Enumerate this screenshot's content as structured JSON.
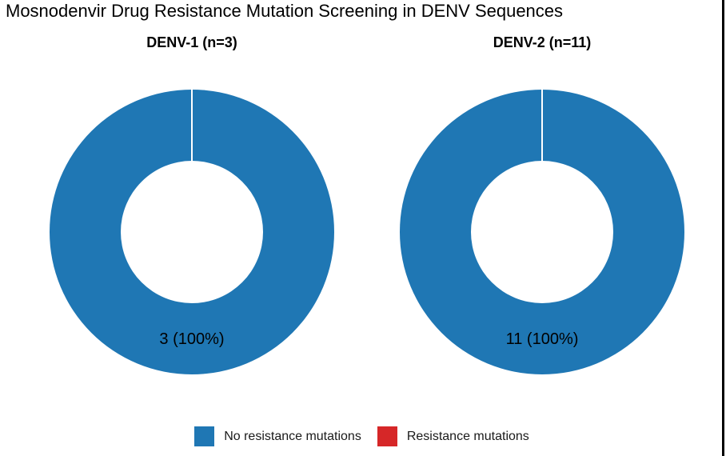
{
  "title": "Mosnodenvir Drug Resistance Mutation Screening in DENV Sequences",
  "colors": {
    "no_resistance": "#1f77b4",
    "resistance": "#d62728",
    "background": "#ffffff",
    "text": "#000000",
    "edge_line": "#000000"
  },
  "chart_data": [
    {
      "type": "pie",
      "subtype": "donut",
      "title": "DENV-1 (n=3)",
      "n": 3,
      "start_angle_deg": 90,
      "inner_radius_ratio": 0.5,
      "slices": [
        {
          "label": "No resistance mutations",
          "value": 3,
          "percent": 100,
          "color": "#1f77b4",
          "annotation": "3 (100%)"
        },
        {
          "label": "Resistance mutations",
          "value": 0,
          "percent": 0,
          "color": "#d62728",
          "annotation": ""
        }
      ]
    },
    {
      "type": "pie",
      "subtype": "donut",
      "title": "DENV-2 (n=11)",
      "n": 11,
      "start_angle_deg": 90,
      "inner_radius_ratio": 0.5,
      "slices": [
        {
          "label": "No resistance mutations",
          "value": 11,
          "percent": 100,
          "color": "#1f77b4",
          "annotation": "11 (100%)"
        },
        {
          "label": "Resistance mutations",
          "value": 0,
          "percent": 0,
          "color": "#d62728",
          "annotation": ""
        }
      ]
    }
  ],
  "legend": {
    "items": [
      {
        "label": "No resistance mutations",
        "color": "#1f77b4"
      },
      {
        "label": "Resistance mutations",
        "color": "#d62728"
      }
    ]
  }
}
